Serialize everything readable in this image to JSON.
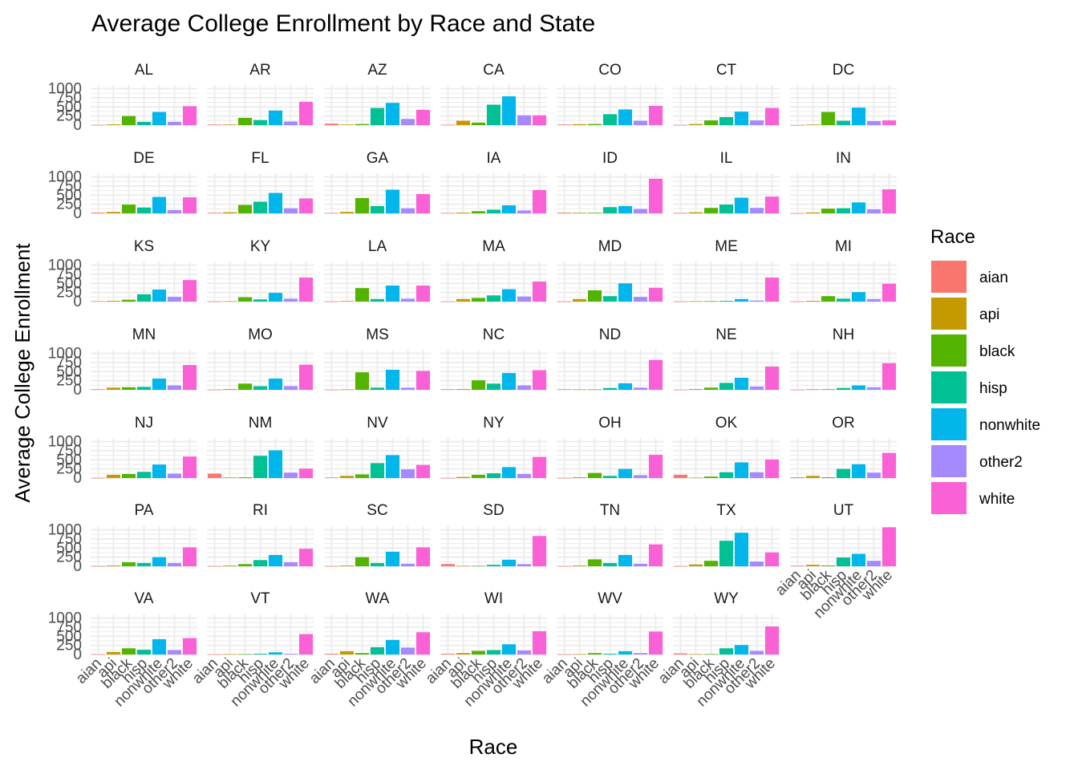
{
  "chart_data": {
    "type": "bar",
    "title": "Average College Enrollment by Race and State",
    "xlabel": "Race",
    "ylabel": "Average College Enrollment",
    "legend_title": "Race",
    "legend_position": "right",
    "facet_layout": "wrap",
    "ylim": [
      0,
      1100
    ],
    "y_ticks": [
      0,
      250,
      500,
      750,
      1000
    ],
    "categories": [
      "aian",
      "api",
      "black",
      "hisp",
      "nonwhite",
      "other2",
      "white"
    ],
    "colors": [
      "#F8766D",
      "#C49A00",
      "#53B400",
      "#00C094",
      "#00B6EB",
      "#A58AFF",
      "#FB61D7"
    ],
    "facets": [
      {
        "state": "AL",
        "values": [
          5,
          20,
          250,
          90,
          360,
          90,
          520
        ]
      },
      {
        "state": "AR",
        "values": [
          15,
          15,
          200,
          140,
          400,
          100,
          640
        ]
      },
      {
        "state": "AZ",
        "values": [
          40,
          15,
          30,
          470,
          610,
          170,
          420
        ]
      },
      {
        "state": "CA",
        "values": [
          10,
          120,
          70,
          560,
          790,
          270,
          270
        ]
      },
      {
        "state": "CO",
        "values": [
          15,
          25,
          30,
          300,
          430,
          120,
          530
        ]
      },
      {
        "state": "CT",
        "values": [
          5,
          30,
          130,
          220,
          370,
          130,
          470
        ]
      },
      {
        "state": "DC",
        "values": [
          2,
          15,
          360,
          120,
          480,
          110,
          130
        ]
      },
      {
        "state": "DE",
        "values": [
          20,
          40,
          240,
          160,
          450,
          90,
          440
        ]
      },
      {
        "state": "FL",
        "values": [
          15,
          30,
          230,
          320,
          560,
          140,
          410
        ]
      },
      {
        "state": "GA",
        "values": [
          10,
          40,
          420,
          200,
          650,
          140,
          530
        ]
      },
      {
        "state": "IA",
        "values": [
          10,
          20,
          60,
          100,
          220,
          80,
          640
        ]
      },
      {
        "state": "ID",
        "values": [
          20,
          15,
          15,
          170,
          200,
          120,
          950
        ]
      },
      {
        "state": "IL",
        "values": [
          10,
          30,
          150,
          240,
          430,
          150,
          460
        ]
      },
      {
        "state": "IN",
        "values": [
          5,
          25,
          130,
          140,
          300,
          110,
          660
        ]
      },
      {
        "state": "KS",
        "values": [
          10,
          20,
          50,
          200,
          330,
          130,
          590
        ]
      },
      {
        "state": "KY",
        "values": [
          5,
          10,
          120,
          60,
          240,
          80,
          660
        ]
      },
      {
        "state": "LA",
        "values": [
          5,
          15,
          370,
          70,
          440,
          80,
          440
        ]
      },
      {
        "state": "MA",
        "values": [
          5,
          70,
          100,
          170,
          340,
          140,
          550
        ]
      },
      {
        "state": "MD",
        "values": [
          5,
          70,
          310,
          150,
          500,
          130,
          380
        ]
      },
      {
        "state": "ME",
        "values": [
          5,
          10,
          10,
          20,
          70,
          30,
          660
        ]
      },
      {
        "state": "MI",
        "values": [
          5,
          20,
          150,
          80,
          260,
          70,
          490
        ]
      },
      {
        "state": "MN",
        "values": [
          15,
          60,
          70,
          80,
          310,
          120,
          680
        ]
      },
      {
        "state": "MO",
        "values": [
          5,
          20,
          170,
          100,
          310,
          100,
          690
        ]
      },
      {
        "state": "MS",
        "values": [
          5,
          10,
          480,
          60,
          550,
          60,
          520
        ]
      },
      {
        "state": "NC",
        "values": [
          15,
          20,
          260,
          170,
          460,
          120,
          540
        ]
      },
      {
        "state": "ND",
        "values": [
          15,
          10,
          10,
          50,
          180,
          60,
          820
        ]
      },
      {
        "state": "NE",
        "values": [
          5,
          20,
          60,
          190,
          330,
          90,
          640
        ]
      },
      {
        "state": "NH",
        "values": [
          5,
          15,
          15,
          50,
          120,
          70,
          730
        ]
      },
      {
        "state": "NJ",
        "values": [
          5,
          90,
          110,
          170,
          370,
          120,
          590
        ]
      },
      {
        "state": "NM",
        "values": [
          120,
          15,
          20,
          610,
          760,
          150,
          260
        ]
      },
      {
        "state": "NV",
        "values": [
          15,
          60,
          100,
          410,
          630,
          240,
          360
        ]
      },
      {
        "state": "NY",
        "values": [
          5,
          30,
          90,
          130,
          300,
          110,
          580
        ]
      },
      {
        "state": "OH",
        "values": [
          5,
          20,
          140,
          60,
          250,
          80,
          640
        ]
      },
      {
        "state": "OK",
        "values": [
          90,
          10,
          40,
          160,
          430,
          160,
          510
        ]
      },
      {
        "state": "OR",
        "values": [
          20,
          60,
          20,
          250,
          380,
          150,
          690
        ]
      },
      {
        "state": "PA",
        "values": [
          5,
          20,
          110,
          90,
          250,
          90,
          520
        ]
      },
      {
        "state": "RI",
        "values": [
          5,
          20,
          60,
          170,
          310,
          110,
          480
        ]
      },
      {
        "state": "SC",
        "values": [
          5,
          20,
          250,
          90,
          400,
          70,
          520
        ]
      },
      {
        "state": "SD",
        "values": [
          60,
          10,
          10,
          40,
          180,
          60,
          830
        ]
      },
      {
        "state": "TN",
        "values": [
          5,
          20,
          190,
          90,
          310,
          70,
          600
        ]
      },
      {
        "state": "TX",
        "values": [
          5,
          50,
          150,
          700,
          920,
          130,
          380
        ]
      },
      {
        "state": "UT",
        "values": [
          15,
          40,
          20,
          240,
          340,
          150,
          1070
        ]
      },
      {
        "state": "VA",
        "values": [
          5,
          70,
          170,
          130,
          420,
          120,
          450
        ]
      },
      {
        "state": "VT",
        "values": [
          5,
          10,
          10,
          20,
          60,
          20,
          560
        ]
      },
      {
        "state": "WA",
        "values": [
          20,
          90,
          40,
          200,
          400,
          190,
          610
        ]
      },
      {
        "state": "WI",
        "values": [
          20,
          40,
          100,
          120,
          280,
          110,
          640
        ]
      },
      {
        "state": "WV",
        "values": [
          5,
          10,
          40,
          20,
          90,
          40,
          630
        ]
      },
      {
        "state": "WY",
        "values": [
          30,
          10,
          10,
          170,
          260,
          100,
          770
        ]
      }
    ]
  }
}
